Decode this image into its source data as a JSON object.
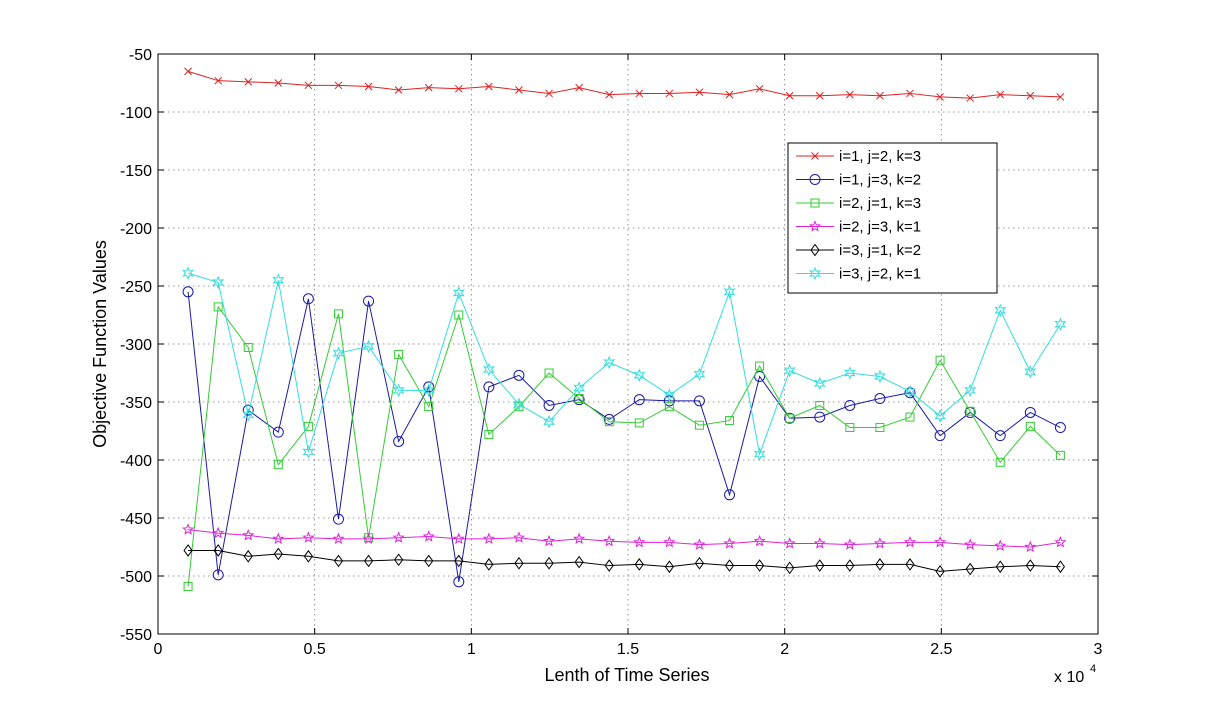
{
  "chart_data": {
    "type": "line",
    "title": "",
    "xlabel": "Lenth of Time Series",
    "ylabel": "Objective Function Values",
    "x_multiplier_label": "x 10",
    "x_multiplier_exp": "4",
    "xlim": [
      0,
      3
    ],
    "ylim": [
      -550,
      -50
    ],
    "grid": true,
    "legend_position": "top-right",
    "xticks": [
      0,
      0.5,
      1,
      1.5,
      2,
      2.5,
      3
    ],
    "xtick_labels": [
      "0",
      "0.5",
      "1",
      "1.5",
      "2",
      "2.5",
      "3"
    ],
    "yticks": [
      -50,
      -100,
      -150,
      -200,
      -250,
      -300,
      -350,
      -400,
      -450,
      -500,
      -550
    ],
    "ytick_labels": [
      "-50",
      "-100",
      "-150",
      "-200",
      "-250",
      "-300",
      "-350",
      "-400",
      "-450",
      "-500",
      "-550"
    ],
    "x": [
      0.096,
      0.192,
      0.288,
      0.384,
      0.48,
      0.576,
      0.672,
      0.768,
      0.864,
      0.96,
      1.056,
      1.152,
      1.248,
      1.344,
      1.44,
      1.536,
      1.632,
      1.728,
      1.824,
      1.92,
      2.016,
      2.112,
      2.208,
      2.304,
      2.4,
      2.496,
      2.592,
      2.688,
      2.784,
      2.88
    ],
    "series": [
      {
        "name": "i=1, j=2, k=3",
        "color": "#dd2222",
        "marker": "x",
        "values": [
          -65,
          -73,
          -74,
          -75,
          -77,
          -77,
          -78,
          -81,
          -79,
          -80,
          -78,
          -81,
          -84,
          -79,
          -85,
          -84,
          -84,
          -83,
          -85,
          -80,
          -86,
          -86,
          -85,
          -86,
          -84,
          -87,
          -88,
          -85,
          -86,
          -87
        ]
      },
      {
        "name": "i=1, j=3, k=2",
        "color": "#1a1aa6",
        "marker": "o",
        "values": [
          -255,
          -499,
          -357,
          -376,
          -261,
          -451,
          -263,
          -384,
          -337,
          -505,
          -337,
          -327,
          -353,
          -348,
          -365,
          -348,
          -349,
          -349,
          -430,
          -328,
          -364,
          -363,
          -353,
          -347,
          -342,
          -379,
          -359,
          -379,
          -359,
          -372
        ]
      },
      {
        "name": "i=2, j=1, k=3",
        "color": "#33cc33",
        "marker": "s",
        "values": [
          -509,
          -268,
          -303,
          -404,
          -371,
          -274,
          -467,
          -309,
          -354,
          -275,
          -378,
          -354,
          -325,
          -347,
          -367,
          -368,
          -354,
          -370,
          -366,
          -319,
          -364,
          -353,
          -372,
          -372,
          -363,
          -314,
          -358,
          -402,
          -371,
          -396
        ]
      },
      {
        "name": "i=2, j=3, k=1",
        "color": "#dd22dd",
        "marker": "p",
        "values": [
          -460,
          -463,
          -465,
          -468,
          -467,
          -468,
          -468,
          -467,
          -466,
          -468,
          -468,
          -467,
          -470,
          -468,
          -470,
          -471,
          -471,
          -473,
          -472,
          -470,
          -472,
          -472,
          -473,
          -472,
          -471,
          -471,
          -473,
          -474,
          -475,
          -471
        ]
      },
      {
        "name": "i=3, j=1, k=2",
        "color": "#000000",
        "marker": "d",
        "values": [
          -478,
          -478,
          -483,
          -481,
          -483,
          -487,
          -487,
          -486,
          -487,
          -487,
          -490,
          -489,
          -489,
          -488,
          -491,
          -490,
          -492,
          -489,
          -491,
          -491,
          -493,
          -491,
          -491,
          -490,
          -490,
          -496,
          -494,
          -492,
          -491,
          -492
        ]
      },
      {
        "name": "i=3, j=2, k=1",
        "color": "#33dddd",
        "marker": "h",
        "values": [
          -239,
          -247,
          -361,
          -245,
          -393,
          -308,
          -302,
          -340,
          -340,
          -256,
          -322,
          -352,
          -367,
          -338,
          -316,
          -327,
          -344,
          -326,
          -255,
          -395,
          -323,
          -334,
          -325,
          -328,
          -341,
          -362,
          -340,
          -271,
          -324,
          -283
        ]
      }
    ]
  }
}
